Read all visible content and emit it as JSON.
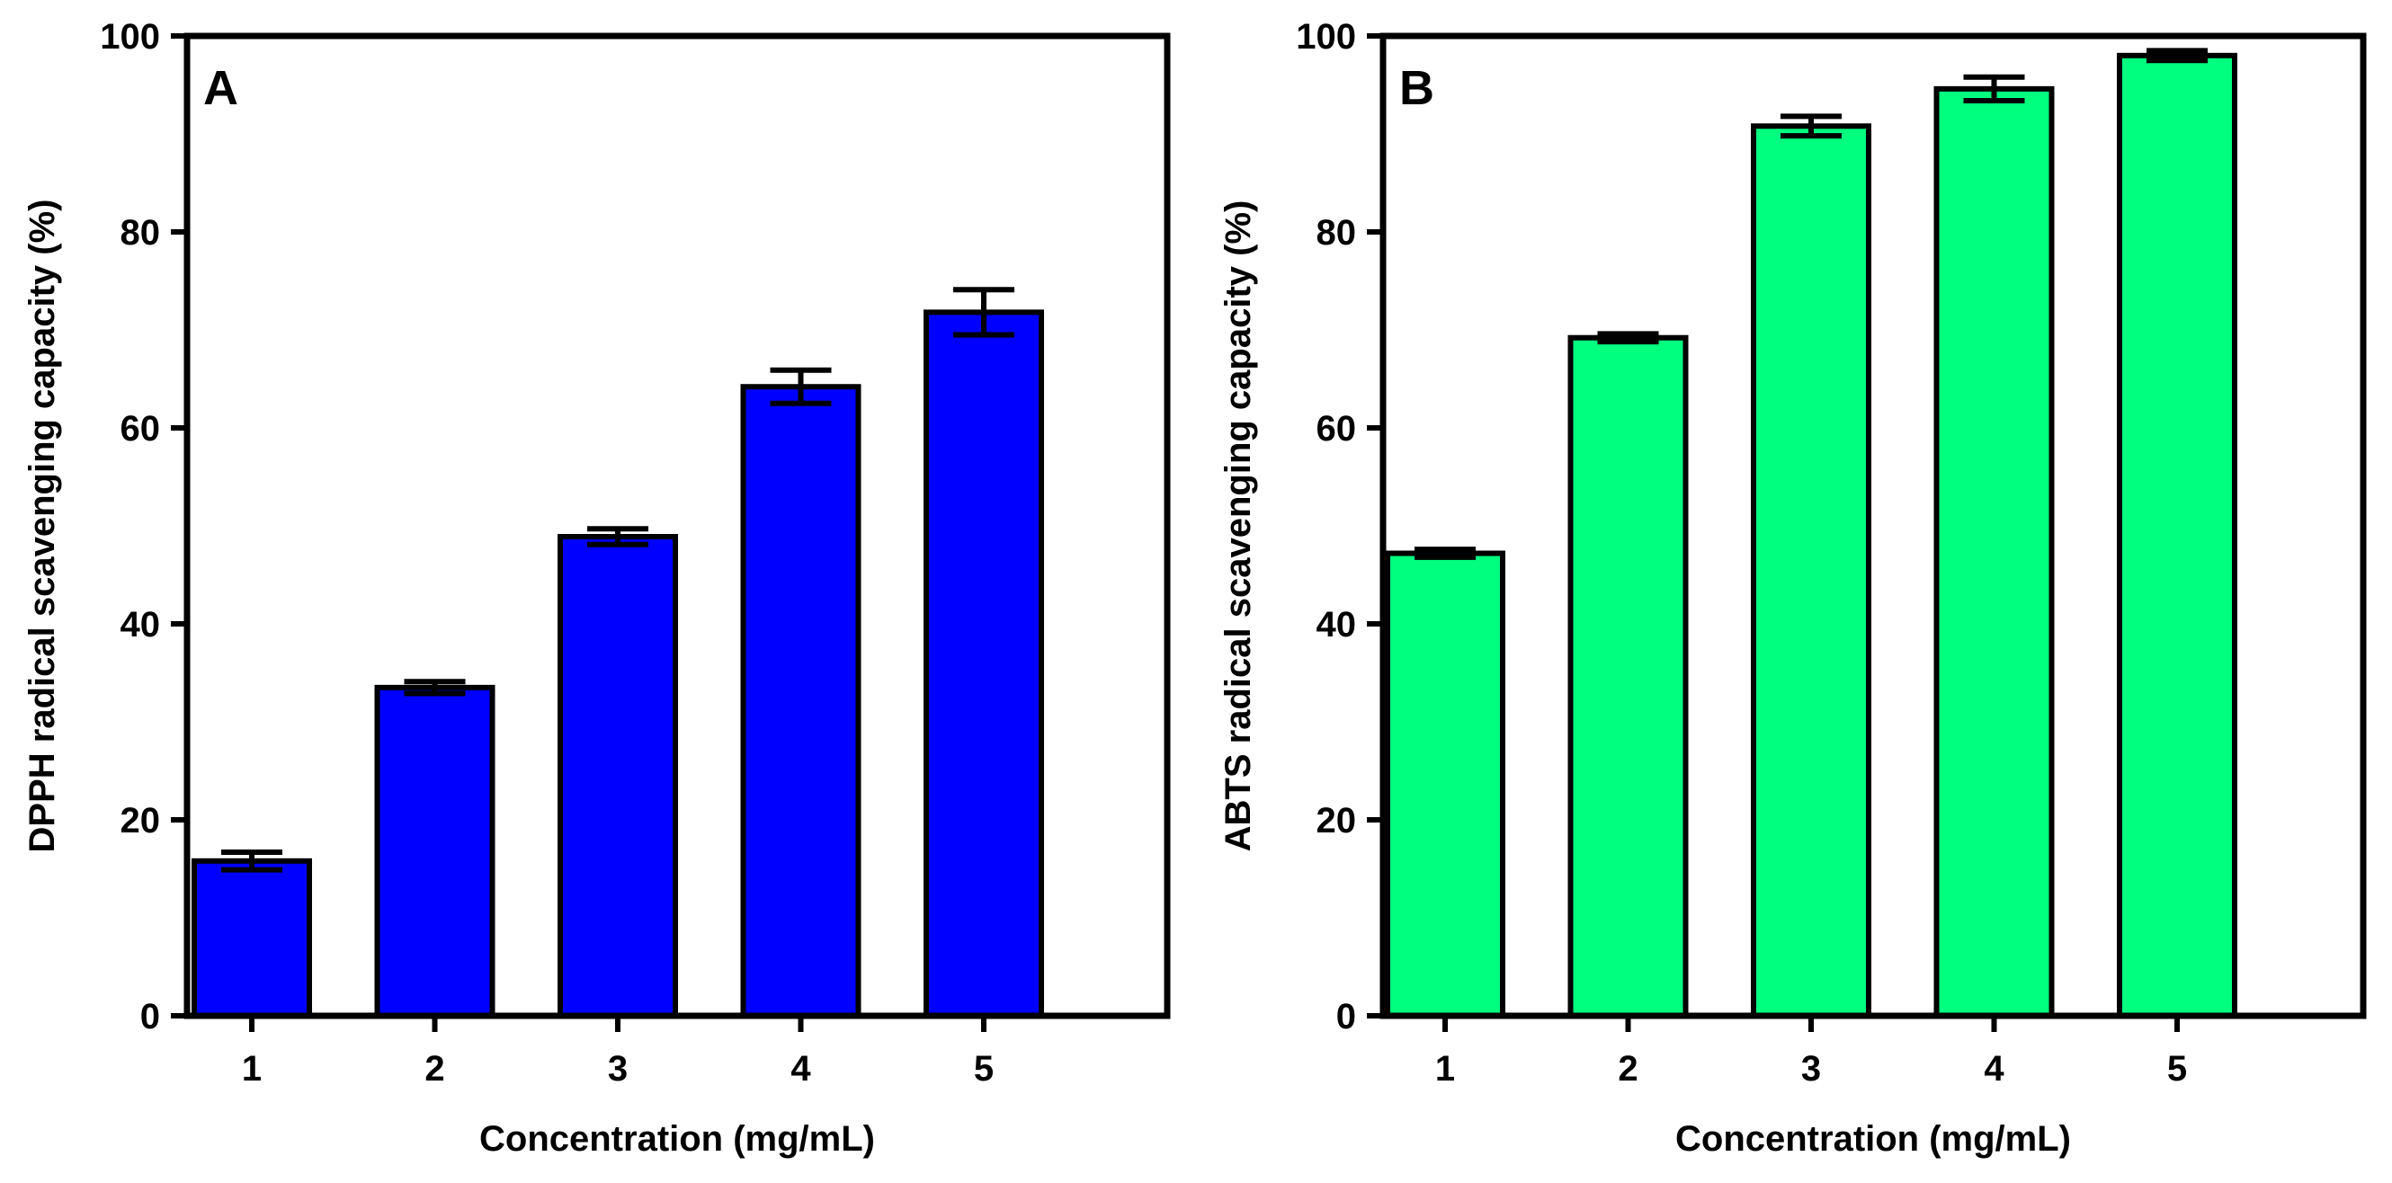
{
  "chart_data": [
    {
      "type": "bar",
      "panel_label": "A",
      "xlabel": "Concentration (mg/mL)",
      "ylabel": "DPPH radical scavenging capacity (%)",
      "categories": [
        "1",
        "2",
        "3",
        "4",
        "5"
      ],
      "values": [
        15.8,
        33.5,
        48.9,
        64.2,
        71.8
      ],
      "errors": [
        0.9,
        0.6,
        0.8,
        1.7,
        2.3
      ],
      "ylim": [
        0,
        100
      ],
      "yticks": [
        "0",
        "20",
        "40",
        "60",
        "80",
        "100"
      ],
      "bar_color": "#0000ff",
      "grid": false
    },
    {
      "type": "bar",
      "panel_label": "B",
      "xlabel": "Concentration (mg/mL)",
      "ylabel": "ABTS radical scavenging capacity (%)",
      "categories": [
        "1",
        "2",
        "3",
        "4",
        "5"
      ],
      "values": [
        47.2,
        69.2,
        90.8,
        94.6,
        98.0
      ],
      "errors": [
        0.4,
        0.4,
        1.0,
        1.2,
        0.5
      ],
      "ylim": [
        0,
        100
      ],
      "yticks": [
        "0",
        "20",
        "40",
        "60",
        "80",
        "100"
      ],
      "bar_color": "#00ff7f",
      "grid": false
    }
  ]
}
